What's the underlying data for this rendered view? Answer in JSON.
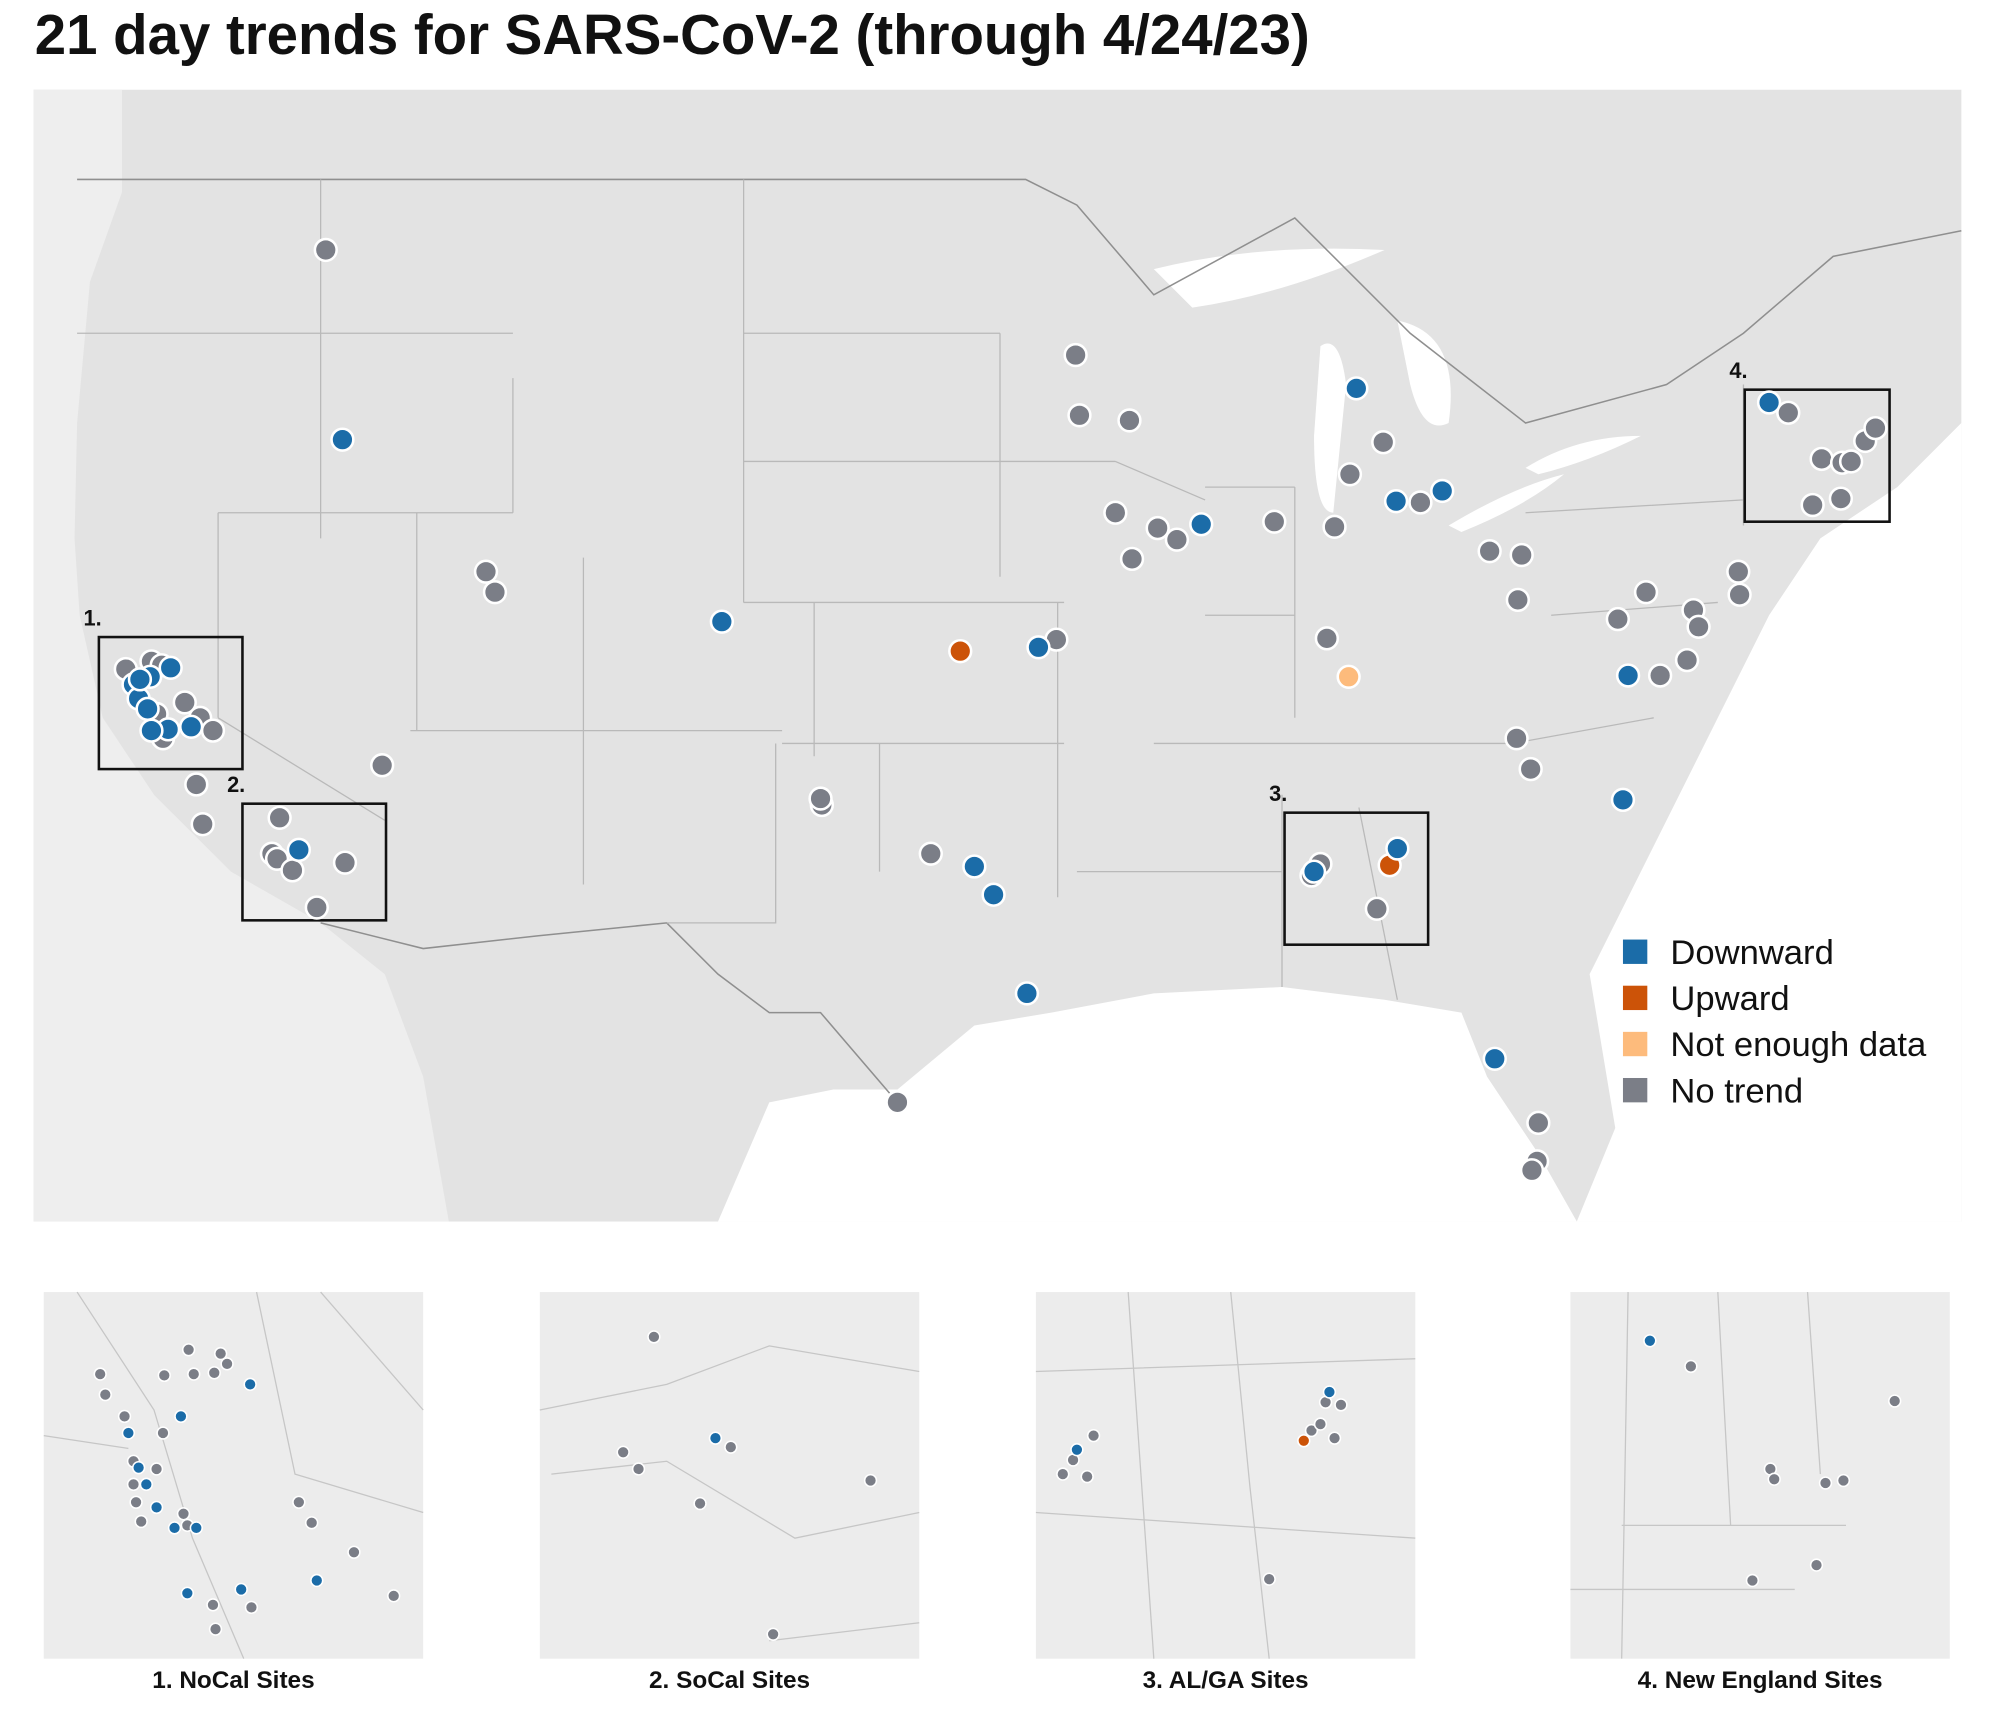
{
  "title": "21 day trends for SARS-CoV-2 (through 4/24/23)",
  "legend": [
    {
      "label": "Downward",
      "color": "#1b6ca8"
    },
    {
      "label": "Upward",
      "color": "#cc5308"
    },
    {
      "label": "Not enough data",
      "color": "#fdbb7c"
    },
    {
      "label": "No trend",
      "color": "#7b7e87"
    }
  ],
  "regions": [
    {
      "marker": "1.",
      "caption": "1. NoCal Sites"
    },
    {
      "marker": "2.",
      "caption": "2. SoCal Sites"
    },
    {
      "marker": "3.",
      "caption": "3. AL/GA Sites"
    },
    {
      "marker": "4.",
      "caption": "4. New England Sites"
    }
  ]
}
